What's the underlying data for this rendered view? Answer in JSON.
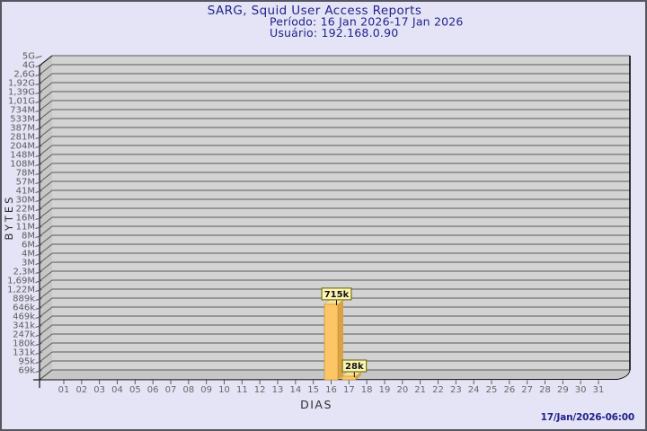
{
  "header": {
    "title": "SARG, Squid User Access Reports",
    "period_line": "Período: 16 Jan 2026-17 Jan 2026",
    "user_line": "Usuário: 192.168.0.90"
  },
  "footer": {
    "timestamp": "17/Jan/2026-06:00"
  },
  "colors": {
    "background": "#e4e4f6",
    "border": "#565660",
    "title_text": "#22228c",
    "timestamp_text": "#22228c",
    "plot_background": "#d3d3d3",
    "plot_wall": "#c7c7c7",
    "gridline": "#59595b",
    "axis_line": "#111111",
    "tick_text": "#5c5c5c",
    "axis_title_text": "#2e2e2e",
    "bar_front": "#fcc565",
    "bar_side": "#dba243",
    "bar_top": "#f6e39d",
    "value_box_bg": "#fdf5b4",
    "value_box_border": "#767617",
    "value_box_text": "#111111"
  },
  "chart_data": {
    "type": "bar",
    "title": "SARG, Squid User Access Reports",
    "xlabel": "DIAS",
    "ylabel": "BYTES",
    "y_scale": "log",
    "y_min_bytes": 69000,
    "y_max_bytes": 5000000000,
    "grid": true,
    "legend": false,
    "y_ticks_top_to_bottom": [
      "5G",
      "4G",
      "2,6G",
      "1,92G",
      "1,39G",
      "1,01G",
      "734M",
      "533M",
      "387M",
      "281M",
      "204M",
      "148M",
      "108M",
      "78M",
      "57M",
      "41M",
      "30M",
      "22M",
      "16M",
      "11M",
      "8M",
      "6M",
      "4M",
      "3M",
      "2,3M",
      "1,69M",
      "1,22M",
      "889k",
      "646k",
      "469k",
      "341k",
      "247k",
      "180k",
      "131k",
      "95k",
      "69k"
    ],
    "x_ticks": [
      "01",
      "02",
      "03",
      "04",
      "05",
      "06",
      "07",
      "08",
      "09",
      "10",
      "11",
      "12",
      "13",
      "14",
      "15",
      "16",
      "17",
      "18",
      "19",
      "20",
      "21",
      "22",
      "23",
      "24",
      "25",
      "26",
      "27",
      "28",
      "29",
      "30",
      "31"
    ],
    "bars": [
      {
        "day": "16",
        "label": "715k",
        "value_bytes": 715000
      },
      {
        "day": "17",
        "label": "28k",
        "value_bytes": 28000
      }
    ]
  }
}
